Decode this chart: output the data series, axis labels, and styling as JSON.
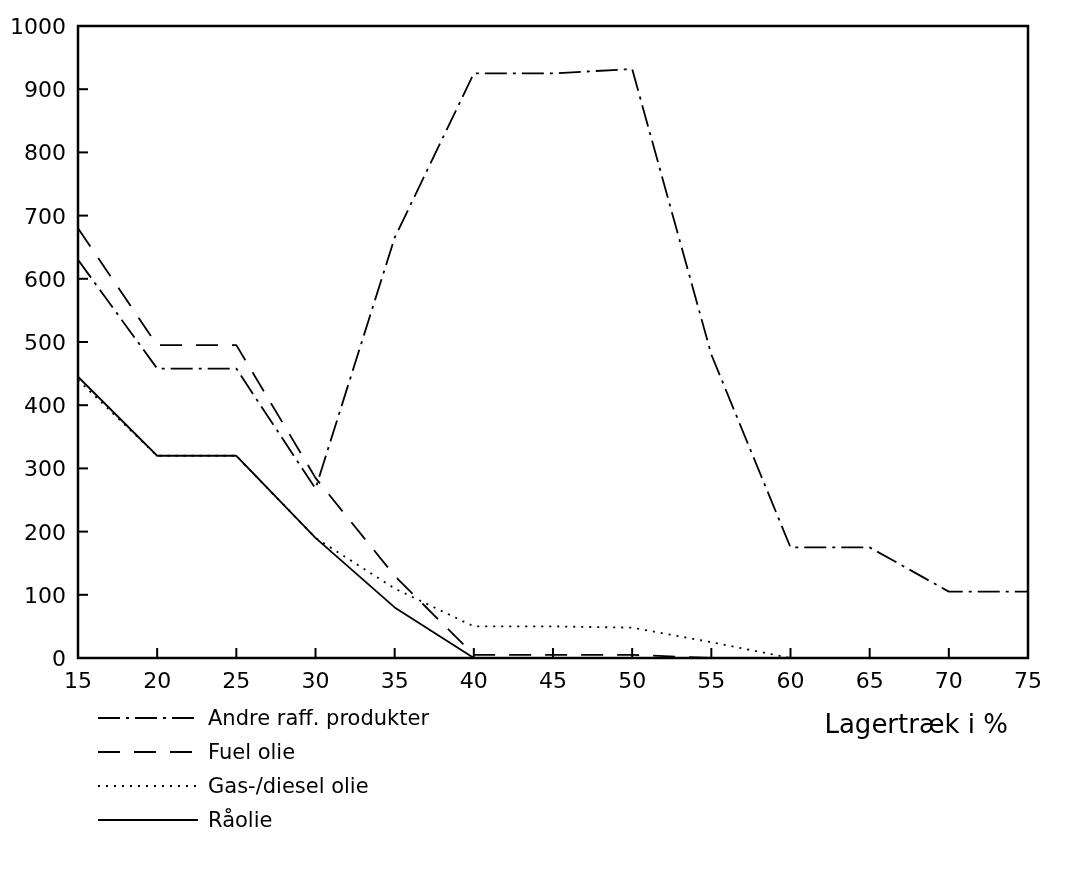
{
  "chart_data": {
    "type": "line",
    "xlabel": "Lagertræk i %",
    "x": [
      15,
      20,
      25,
      30,
      35,
      40,
      45,
      50,
      55,
      60,
      65,
      70,
      75
    ],
    "series": [
      {
        "name": "Andre raff. produkter",
        "color": "#000000",
        "line_style": "dashdot",
        "values": [
          630,
          458,
          458,
          268,
          665,
          925,
          925,
          932,
          480,
          175,
          175,
          105,
          105
        ]
      },
      {
        "name": "Fuel olie",
        "color": "#000000",
        "line_style": "dashed",
        "values": [
          680,
          495,
          495,
          285,
          130,
          5,
          5,
          5,
          0,
          null,
          null,
          null,
          null
        ]
      },
      {
        "name": "Gas-/diesel olie",
        "color": "#000000",
        "line_style": "dotted",
        "values": [
          440,
          320,
          320,
          190,
          110,
          50,
          50,
          48,
          25,
          0,
          null,
          null,
          null
        ]
      },
      {
        "name": "Råolie",
        "color": "#000000",
        "line_style": "solid",
        "values": [
          445,
          320,
          320,
          190,
          80,
          0,
          null,
          null,
          null,
          null,
          null,
          null,
          null
        ]
      }
    ],
    "xlim": [
      15,
      75
    ],
    "xticks": [
      15,
      20,
      25,
      30,
      35,
      40,
      45,
      50,
      55,
      60,
      65,
      70,
      75
    ],
    "ylim": [
      0,
      1000
    ],
    "yticks": [
      0,
      100,
      200,
      300,
      400,
      500,
      600,
      700,
      800,
      900,
      1000
    ],
    "grid": false,
    "legend": "bottom",
    "marker": "none"
  }
}
